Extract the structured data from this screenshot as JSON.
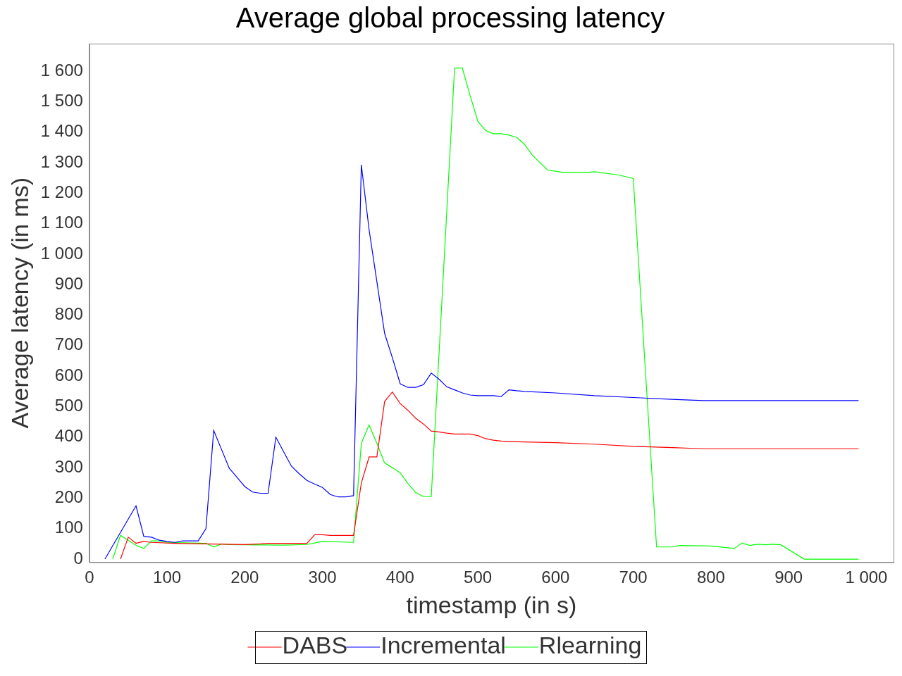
{
  "chart_data": {
    "type": "line",
    "title": "Average global processing latency",
    "x_label": "timestamp (in s)",
    "y_label": "Average latency (in ms)",
    "xlim": [
      0,
      1035
    ],
    "ylim": [
      -10,
      1690
    ],
    "xticks": [
      0,
      100,
      200,
      300,
      400,
      500,
      600,
      700,
      800,
      900,
      {
        "value": 1000,
        "label": "1 000"
      }
    ],
    "yticks": [
      0,
      100,
      200,
      300,
      400,
      500,
      600,
      700,
      800,
      900,
      {
        "value": 1000,
        "label": "1 000"
      },
      {
        "value": 1100,
        "label": "1 100"
      },
      {
        "value": 1200,
        "label": "1 200"
      },
      {
        "value": 1300,
        "label": "1 300"
      },
      {
        "value": 1400,
        "label": "1 400"
      },
      {
        "value": 1500,
        "label": "1 500"
      },
      {
        "value": 1600,
        "label": "1 600"
      }
    ],
    "grid": false,
    "legend": "bottom",
    "series": [
      {
        "name": "DABS",
        "color": "#ff0000",
        "x": [
          40,
          50,
          60,
          70,
          80,
          110,
          200,
          220,
          230,
          280,
          290,
          300,
          310,
          340,
          350,
          360,
          370,
          380,
          390,
          400,
          410,
          420,
          430,
          440,
          450,
          460,
          470,
          490,
          500,
          510,
          520,
          530,
          540,
          550,
          600,
          650,
          700,
          750,
          790,
          990
        ],
        "values": [
          0,
          72,
          52,
          58,
          55,
          52,
          48,
          50,
          52,
          52,
          80,
          80,
          78,
          78,
          250,
          335,
          335,
          517,
          548,
          510,
          488,
          462,
          443,
          420,
          417,
          413,
          410,
          410,
          405,
          395,
          390,
          387,
          386,
          385,
          382,
          377,
          370,
          366,
          362,
          362
        ]
      },
      {
        "name": "Incremental",
        "color": "#0000ff",
        "x": [
          20,
          60,
          70,
          80,
          90,
          100,
          110,
          120,
          140,
          150,
          160,
          170,
          180,
          190,
          200,
          210,
          220,
          230,
          240,
          250,
          260,
          270,
          280,
          290,
          300,
          310,
          320,
          330,
          340,
          350,
          360,
          370,
          380,
          390,
          400,
          410,
          420,
          430,
          440,
          450,
          460,
          470,
          480,
          490,
          500,
          520,
          530,
          540,
          550,
          560,
          600,
          650,
          700,
          750,
          790,
          990
        ],
        "values": [
          0,
          175,
          75,
          72,
          62,
          58,
          55,
          60,
          60,
          100,
          422,
          360,
          298,
          268,
          238,
          220,
          216,
          216,
          400,
          352,
          305,
          280,
          258,
          246,
          235,
          212,
          204,
          204,
          208,
          1293,
          1080,
          910,
          740,
          660,
          575,
          563,
          563,
          572,
          610,
          590,
          565,
          555,
          545,
          538,
          536,
          536,
          533,
          555,
          552,
          550,
          545,
          536,
          530,
          524,
          520,
          520
        ]
      },
      {
        "name": "Rlearning",
        "color": "#00ff00",
        "x": [
          30,
          40,
          50,
          60,
          70,
          80,
          90,
          100,
          150,
          160,
          170,
          180,
          200,
          250,
          280,
          300,
          340,
          350,
          360,
          370,
          380,
          390,
          400,
          410,
          420,
          430,
          440,
          470,
          480,
          490,
          500,
          510,
          520,
          530,
          540,
          550,
          560,
          570,
          580,
          590,
          600,
          610,
          640,
          650,
          680,
          700,
          730,
          750,
          760,
          800,
          830,
          840,
          850,
          860,
          870,
          880,
          890,
          920,
          990
        ],
        "values": [
          0,
          78,
          62,
          45,
          35,
          60,
          60,
          55,
          52,
          40,
          50,
          48,
          47,
          46,
          48,
          58,
          55,
          380,
          440,
          380,
          315,
          300,
          283,
          248,
          218,
          205,
          205,
          1610,
          1610,
          1520,
          1435,
          1405,
          1395,
          1395,
          1390,
          1383,
          1360,
          1325,
          1300,
          1275,
          1272,
          1268,
          1268,
          1270,
          1260,
          1248,
          40,
          40,
          45,
          43,
          35,
          53,
          45,
          49,
          47,
          49,
          47,
          0,
          0
        ]
      }
    ]
  }
}
